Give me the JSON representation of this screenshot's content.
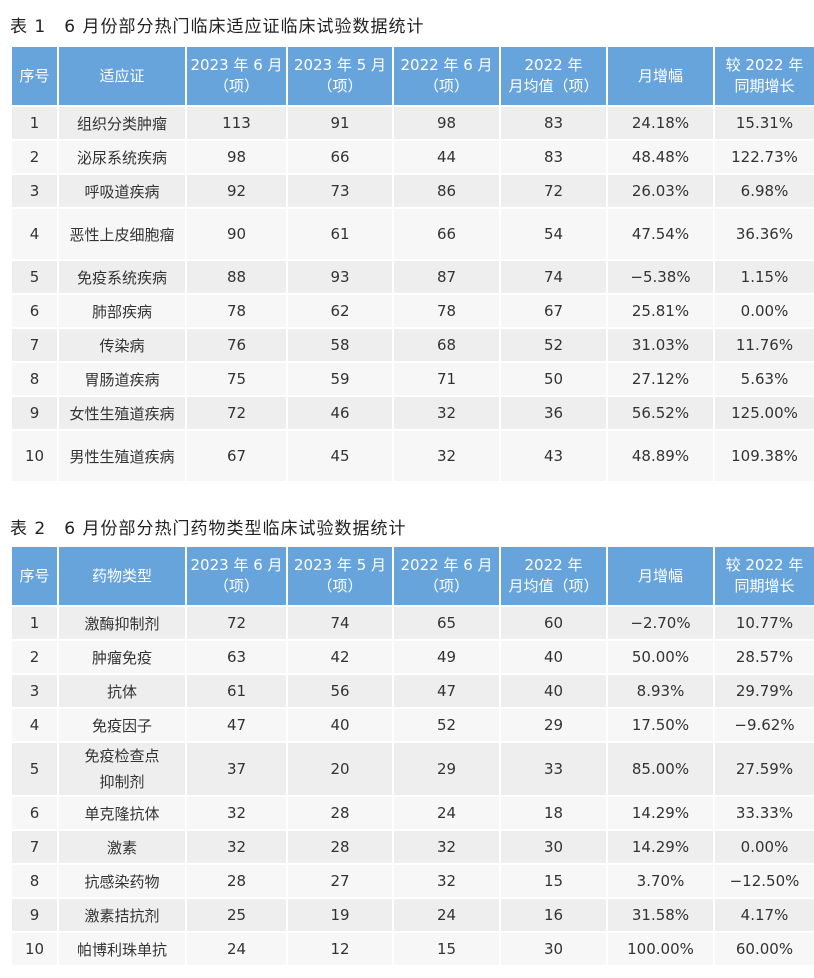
{
  "table1": {
    "title": "表 1　6 月份部分热门临床适应证临床试验数据统计",
    "headers": [
      "序号",
      "适应证",
      "2023 年 6 月\n（项）",
      "2023 年 5 月\n（项）",
      "2022 年 6 月\n（项）",
      "2022 年\n月均值（项）",
      "月增幅",
      "较 2022 年\n同期增长"
    ],
    "rows": [
      [
        "1",
        "组织分类肿瘤",
        "113",
        "91",
        "98",
        "83",
        "24.18%",
        "15.31%"
      ],
      [
        "2",
        "泌尿系统疾病",
        "98",
        "66",
        "44",
        "83",
        "48.48%",
        "122.73%"
      ],
      [
        "3",
        "呼吸道疾病",
        "92",
        "73",
        "86",
        "72",
        "26.03%",
        "6.98%"
      ],
      [
        "4",
        "恶性上皮细胞瘤",
        "90",
        "61",
        "66",
        "54",
        "47.54%",
        "36.36%"
      ],
      [
        "5",
        "免疫系统疾病",
        "88",
        "93",
        "87",
        "74",
        "−5.38%",
        "1.15%"
      ],
      [
        "6",
        "肺部疾病",
        "78",
        "62",
        "78",
        "67",
        "25.81%",
        "0.00%"
      ],
      [
        "7",
        "传染病",
        "76",
        "58",
        "68",
        "52",
        "31.03%",
        "11.76%"
      ],
      [
        "8",
        "胃肠道疾病",
        "75",
        "59",
        "71",
        "50",
        "27.12%",
        "5.63%"
      ],
      [
        "9",
        "女性生殖道疾病",
        "72",
        "46",
        "32",
        "36",
        "56.52%",
        "125.00%"
      ],
      [
        "10",
        "男性生殖道疾病",
        "67",
        "45",
        "32",
        "43",
        "48.89%",
        "109.38%"
      ]
    ]
  },
  "table2": {
    "title": "表 2　6 月份部分热门药物类型临床试验数据统计",
    "headers": [
      "序号",
      "药物类型",
      "2023 年 6 月\n（项）",
      "2023 年 5 月\n（项）",
      "2022 年 6 月\n（项）",
      "2022 年\n月均值（项）",
      "月增幅",
      "较 2022 年\n同期增长"
    ],
    "rows": [
      [
        "1",
        "激酶抑制剂",
        "72",
        "74",
        "65",
        "60",
        "−2.70%",
        "10.77%"
      ],
      [
        "2",
        "肿瘤免疫",
        "63",
        "42",
        "49",
        "40",
        "50.00%",
        "28.57%"
      ],
      [
        "3",
        "抗体",
        "61",
        "56",
        "47",
        "40",
        "8.93%",
        "29.79%"
      ],
      [
        "4",
        "免疫因子",
        "47",
        "40",
        "52",
        "29",
        "17.50%",
        "−9.62%"
      ],
      [
        "5",
        "免疫检查点\n抑制剂",
        "37",
        "20",
        "29",
        "33",
        "85.00%",
        "27.59%"
      ],
      [
        "6",
        "单克隆抗体",
        "32",
        "28",
        "24",
        "18",
        "14.29%",
        "33.33%"
      ],
      [
        "7",
        "激素",
        "32",
        "28",
        "32",
        "30",
        "14.29%",
        "0.00%"
      ],
      [
        "8",
        "抗感染药物",
        "28",
        "27",
        "32",
        "15",
        "3.70%",
        "−12.50%"
      ],
      [
        "9",
        "激素拮抗剂",
        "25",
        "19",
        "24",
        "16",
        "31.58%",
        "4.17%"
      ],
      [
        "10",
        "帕博利珠单抗",
        "24",
        "12",
        "15",
        "30",
        "100.00%",
        "60.00%"
      ]
    ]
  }
}
